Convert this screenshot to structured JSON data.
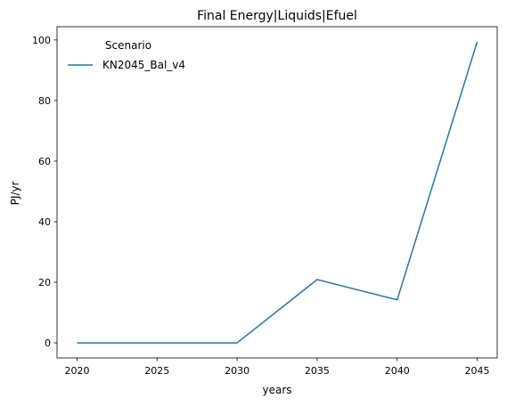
{
  "chart_data": {
    "type": "line",
    "title": "Final Energy|Liquids|Efuel",
    "xlabel": "years",
    "ylabel": "PJ/yr",
    "xlim": [
      2018.75,
      2046.25
    ],
    "ylim": [
      -4.97,
      104.37
    ],
    "xticks": [
      2020,
      2025,
      2030,
      2035,
      2040,
      2045
    ],
    "yticks": [
      0,
      20,
      40,
      60,
      80,
      100
    ],
    "grid": false,
    "legend": {
      "title": "Scenario",
      "placement": "top-left"
    },
    "series": [
      {
        "name": "KN2045_Bal_v4",
        "color": "#1f77b4",
        "x": [
          2020,
          2030,
          2035,
          2040,
          2045
        ],
        "y": [
          0,
          0,
          20.9,
          14.2,
          99.4
        ]
      }
    ]
  }
}
